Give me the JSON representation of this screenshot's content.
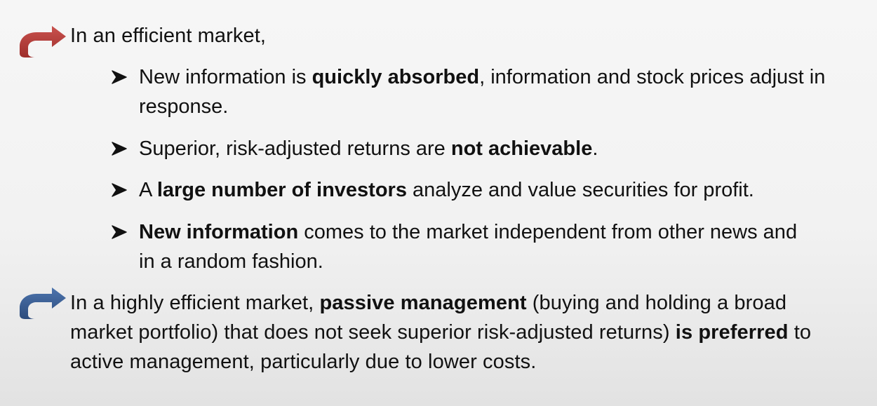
{
  "intro": {
    "icon": "red-curved-arrow-icon",
    "color": "#b33b3b",
    "text": "In an efficient market,"
  },
  "bullets": [
    {
      "icon": "arrowhead-bullet-icon",
      "before": "New information is ",
      "bold": "quickly absorbed",
      "after": ", information and stock prices adjust in response."
    },
    {
      "icon": "arrowhead-bullet-icon",
      "before": "Superior, risk-adjusted returns are ",
      "bold": "not achievable",
      "after": "."
    },
    {
      "icon": "arrowhead-bullet-icon",
      "before": "A ",
      "bold": "large number of investors",
      "after": " analyze and value securities for profit."
    },
    {
      "icon": "arrowhead-bullet-icon",
      "before": "",
      "bold": "New information",
      "after": " comes to the market independent from other news and in a random fashion."
    }
  ],
  "conclusion": {
    "icon": "blue-curved-arrow-icon",
    "color": "#3a5f95",
    "part1": "In a highly efficient market, ",
    "bold1": "passive management",
    "part2": " (buying and holding a broad market portfolio) that does not seek superior risk-adjusted returns) ",
    "bold2": "is preferred",
    "part3": " to active management, particularly due to lower costs."
  }
}
